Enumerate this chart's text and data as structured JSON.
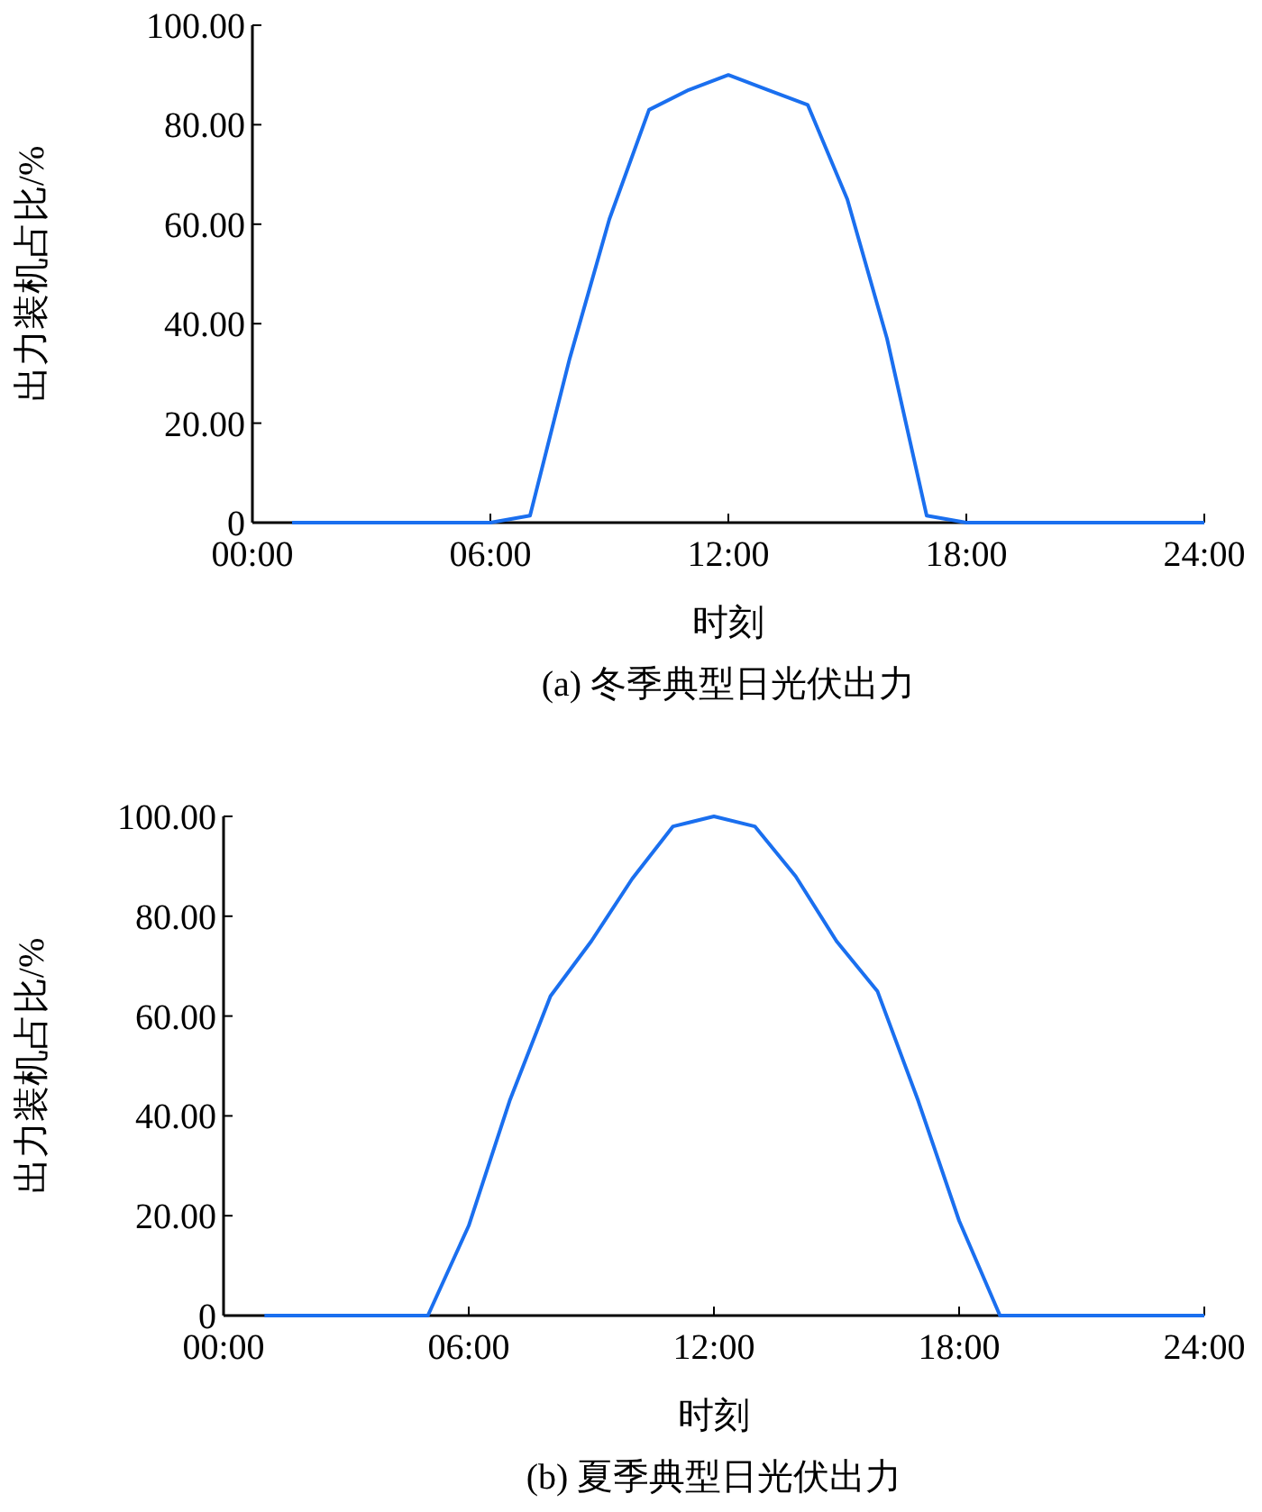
{
  "chart_data": [
    {
      "type": "line",
      "title": "(a) 冬季典型日光伏出力",
      "xlabel": "时刻",
      "ylabel": "出力装机占比/%",
      "x": [
        1,
        2,
        3,
        4,
        5,
        6,
        7,
        8,
        9,
        10,
        11,
        12,
        13,
        14,
        15,
        16,
        17,
        18,
        19,
        20,
        21,
        22,
        23,
        24
      ],
      "series": [
        {
          "color": "#1a6fef",
          "values": [
            0,
            0,
            0,
            0,
            0,
            0,
            1.4,
            33,
            61,
            83,
            87,
            90,
            87,
            84,
            65,
            37,
            1.4,
            0,
            0,
            0,
            0,
            0,
            0,
            0
          ]
        }
      ],
      "xlim": [
        0,
        24
      ],
      "xticks": [
        {
          "value": 0,
          "label": "00:00"
        },
        {
          "value": 6,
          "label": "06:00"
        },
        {
          "value": 12,
          "label": "12:00"
        },
        {
          "value": 18,
          "label": "18:00"
        },
        {
          "value": 24,
          "label": "24:00"
        }
      ],
      "ylim": [
        0,
        100
      ],
      "yticks": [
        {
          "value": 0,
          "label": "0"
        },
        {
          "value": 20,
          "label": "20.00"
        },
        {
          "value": 40,
          "label": "40.00"
        },
        {
          "value": 60,
          "label": "60.00"
        },
        {
          "value": 80,
          "label": "80.00"
        },
        {
          "value": 100,
          "label": "100.00"
        }
      ],
      "marker": "none",
      "line_style": "solid"
    },
    {
      "type": "line",
      "title": "(b) 夏季典型日光伏出力",
      "xlabel": "时刻",
      "ylabel": "出力装机占比/%",
      "x": [
        1,
        2,
        3,
        4,
        5,
        6,
        7,
        8,
        9,
        10,
        11,
        12,
        13,
        14,
        15,
        16,
        17,
        18,
        19,
        20,
        21,
        22,
        23,
        24
      ],
      "series": [
        {
          "color": "#1a6fef",
          "values": [
            0,
            0,
            0,
            0,
            0,
            18,
            43,
            64,
            75,
            87.5,
            98,
            100,
            98,
            88,
            75,
            65,
            43,
            19,
            0,
            0,
            0,
            0,
            0,
            0
          ]
        }
      ],
      "xlim": [
        0,
        24
      ],
      "xticks": [
        {
          "value": 0,
          "label": "00:00"
        },
        {
          "value": 6,
          "label": "06:00"
        },
        {
          "value": 12,
          "label": "12:00"
        },
        {
          "value": 18,
          "label": "18:00"
        },
        {
          "value": 24,
          "label": "24:00"
        }
      ],
      "ylim": [
        0,
        100
      ],
      "yticks": [
        {
          "value": 0,
          "label": "0"
        },
        {
          "value": 20,
          "label": "20.00"
        },
        {
          "value": 40,
          "label": "40.00"
        },
        {
          "value": 60,
          "label": "60.00"
        },
        {
          "value": 80,
          "label": "80.00"
        },
        {
          "value": 100,
          "label": "100.00"
        }
      ],
      "marker": "none",
      "line_style": "solid"
    }
  ]
}
